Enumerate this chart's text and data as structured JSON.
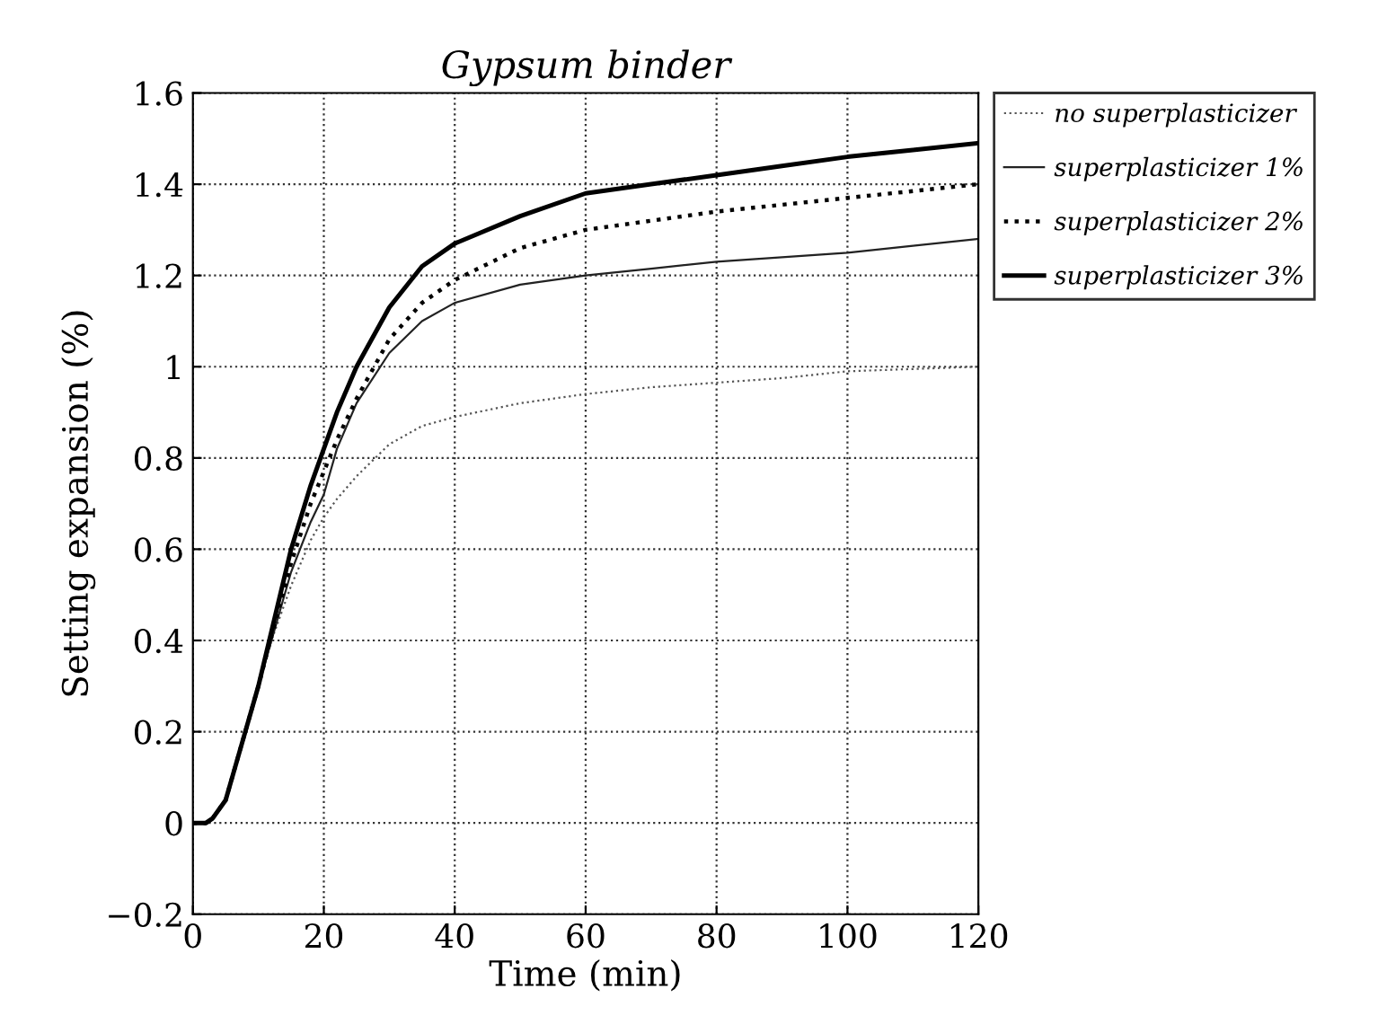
{
  "chart_data": {
    "type": "line",
    "title": "Gypsum binder",
    "xlabel": "Time (min)",
    "ylabel": "Setting expansion (%)",
    "xlim": [
      0,
      120
    ],
    "xticks": [
      0,
      20,
      40,
      60,
      80,
      100,
      120
    ],
    "ylim": [
      -0.2,
      1.6
    ],
    "yticks": [
      {
        "value": -0.2,
        "label": "−0.2"
      },
      0,
      0.2,
      0.4,
      0.6,
      0.8,
      1,
      1.2,
      1.4,
      1.6
    ],
    "grid": true,
    "legend": "right",
    "marker": "none",
    "x": [
      0,
      2,
      3,
      5,
      8,
      10,
      12,
      15,
      18,
      20,
      22,
      25,
      30,
      35,
      40,
      50,
      60,
      70,
      80,
      90,
      100,
      110,
      120
    ],
    "series": [
      {
        "name": "no superplasticizer",
        "color": "#555555",
        "line_style": "dotted",
        "values": [
          0,
          0,
          0.01,
          0.05,
          0.2,
          0.3,
          0.4,
          0.52,
          0.62,
          0.67,
          0.71,
          0.76,
          0.83,
          0.87,
          0.89,
          0.92,
          0.94,
          0.955,
          0.965,
          0.975,
          0.99,
          0.995,
          1.0
        ]
      },
      {
        "name": "superplasticizer 1%",
        "color": "#222222",
        "line_style": "solid",
        "values": [
          0,
          0,
          0.01,
          0.05,
          0.2,
          0.3,
          0.4,
          0.55,
          0.66,
          0.72,
          0.82,
          0.92,
          1.03,
          1.1,
          1.14,
          1.18,
          1.2,
          1.215,
          1.23,
          1.24,
          1.25,
          1.265,
          1.28
        ]
      },
      {
        "name": "superplasticizer 2%",
        "color": "#000000",
        "line_style": "dotted",
        "values": [
          0,
          0,
          0.01,
          0.05,
          0.2,
          0.3,
          0.41,
          0.57,
          0.7,
          0.77,
          0.84,
          0.93,
          1.06,
          1.14,
          1.19,
          1.26,
          1.3,
          1.32,
          1.34,
          1.355,
          1.37,
          1.385,
          1.4
        ]
      },
      {
        "name": "superplasticizer 3%",
        "color": "#000000",
        "line_style": "solid",
        "values": [
          0,
          0,
          0.01,
          0.05,
          0.2,
          0.3,
          0.42,
          0.6,
          0.74,
          0.82,
          0.9,
          1.0,
          1.13,
          1.22,
          1.27,
          1.33,
          1.38,
          1.4,
          1.42,
          1.44,
          1.46,
          1.475,
          1.49
        ]
      }
    ]
  }
}
